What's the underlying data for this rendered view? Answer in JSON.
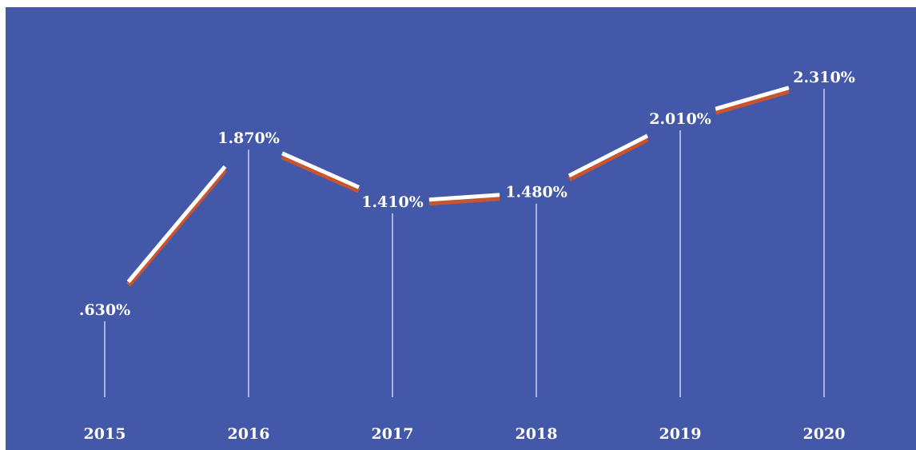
{
  "chart_data": {
    "type": "line",
    "title": "",
    "xlabel": "",
    "ylabel": "",
    "categories": [
      "2015",
      "2016",
      "2017",
      "2018",
      "2019",
      "2020"
    ],
    "values": [
      0.63,
      1.87,
      1.41,
      1.48,
      2.01,
      2.31
    ],
    "value_labels": [
      ".630%",
      "1.870%",
      "1.410%",
      "1.480%",
      "2.010%",
      "2.310%"
    ],
    "ylim": [
      0,
      2.5
    ],
    "grid": false,
    "legend": "none",
    "colors": {
      "background": "#4358a8",
      "line_top": "#ffffff",
      "line_bottom": "#c8542e",
      "drop_line": "#c9d2f0",
      "text": "#ffffff"
    }
  }
}
